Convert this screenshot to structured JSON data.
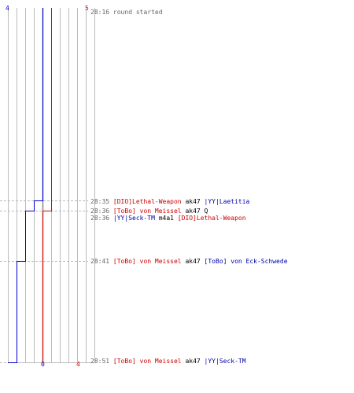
{
  "score_start": {
    "blue": "4",
    "red": "5"
  },
  "score_end": {
    "blue": "0",
    "red": "4"
  },
  "colors": {
    "blue": "#0000cc",
    "red": "#dd0000",
    "grid": "#bbbbbb",
    "dash": "#bbbbbb"
  },
  "events": [
    {
      "time": "28:16",
      "message": "round started"
    },
    {
      "time": "28:35",
      "killer": "[DIO]Lethal-Weapon",
      "killer_team": "red",
      "weapon": "ak47",
      "victim": "|YY|Laetitia",
      "victim_team": "blue"
    },
    {
      "time": "28:36",
      "killer": "[ToBo] von Meissel",
      "killer_team": "red",
      "weapon": "ak47 Q",
      "victim": "",
      "victim_team": ""
    },
    {
      "time": "28:36",
      "killer": "|YY|Seck-TM",
      "killer_team": "blue",
      "weapon": "m4a1",
      "victim": "[DIO]Lethal-Weapon",
      "victim_team": "red"
    },
    {
      "time": "28:41",
      "killer": "[ToBo] von Meissel",
      "killer_team": "red",
      "weapon": "ak47",
      "victim": "[ToBo] von Eck-Schwede",
      "victim_team": "blue"
    },
    {
      "time": "28:51",
      "killer": "[ToBo] von Meissel",
      "killer_team": "red",
      "weapon": "ak47",
      "victim": "|YY|Seck-TM",
      "victim_team": "blue"
    }
  ],
  "chart_data": {
    "type": "line",
    "series": [
      {
        "team": "blue",
        "steps": [
          {
            "time": "28:16",
            "alive": 4
          },
          {
            "time": "28:35",
            "alive": 3
          },
          {
            "time": "28:36",
            "alive": 2
          },
          {
            "time": "28:41",
            "alive": 1
          },
          {
            "time": "28:51",
            "alive": 0
          }
        ]
      },
      {
        "team": "red",
        "steps": [
          {
            "time": "28:16",
            "alive": 5
          },
          {
            "time": "28:36",
            "alive": 4
          },
          {
            "time": "28:51",
            "alive": 4
          }
        ]
      }
    ],
    "ylim": [
      0,
      10
    ]
  }
}
